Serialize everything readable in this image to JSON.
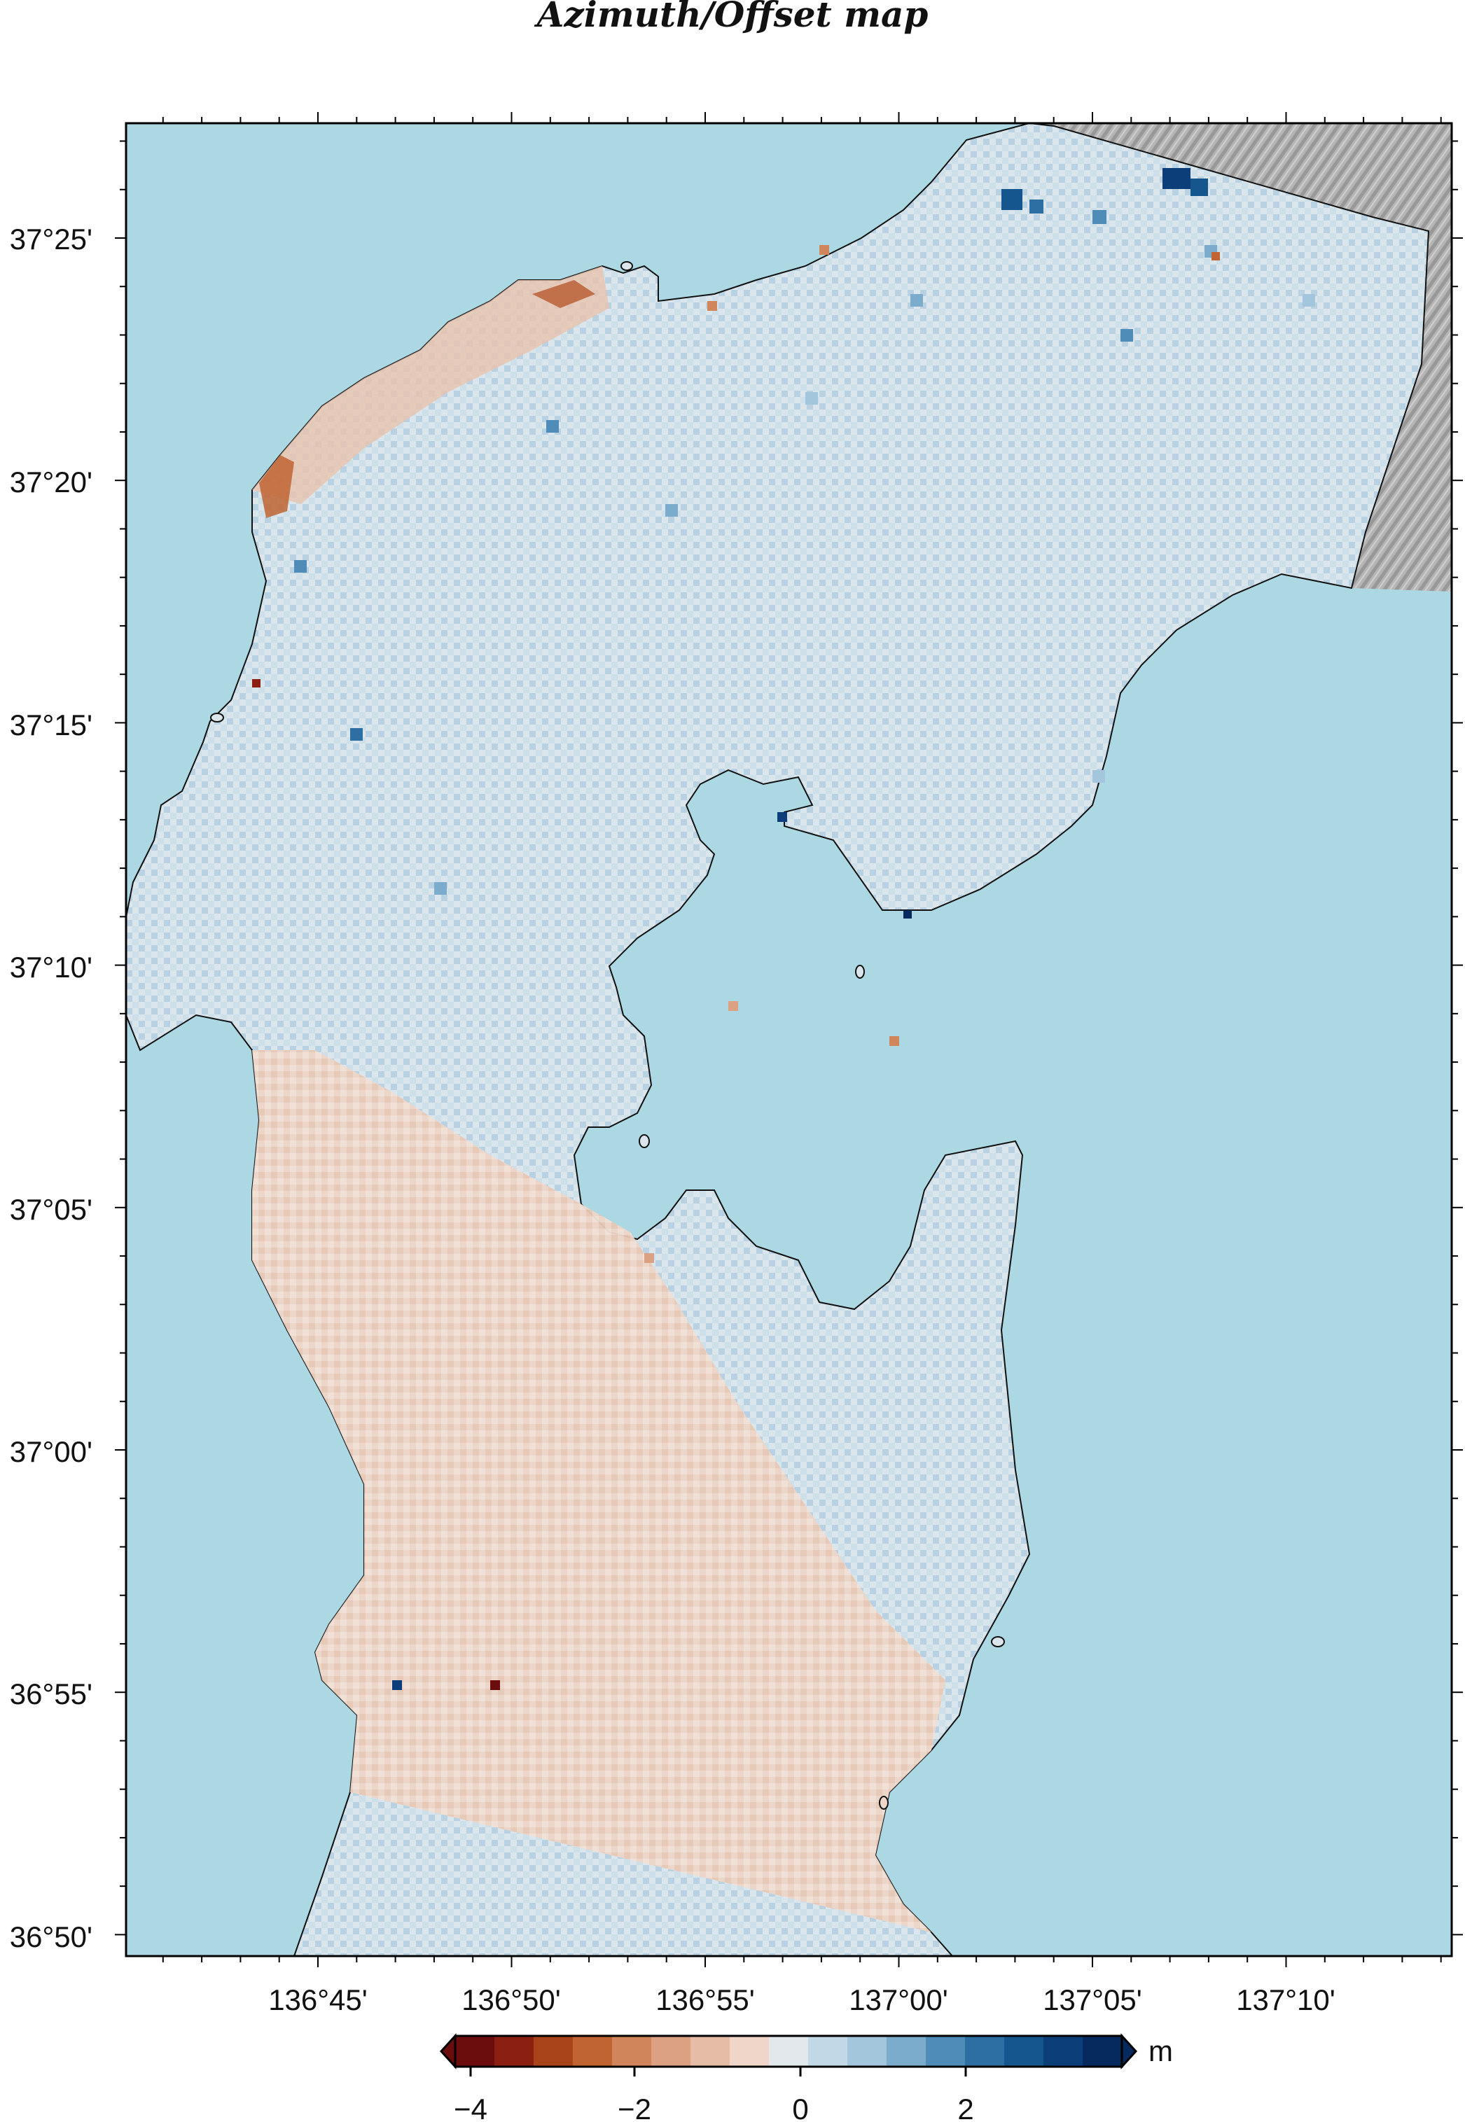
{
  "title": "Azimuth/Offset map",
  "colors": {
    "water": "#acd8e4",
    "land_base": "#dde7ec",
    "land_warm": "#efd7c9",
    "shade": "#a9a9a9",
    "frame": "#000000"
  },
  "axes": {
    "lon_labels": [
      "136°45'",
      "136°50'",
      "136°55'",
      "137°00'",
      "137°05'",
      "137°10'"
    ],
    "lat_labels": [
      "37°25'",
      "37°20'",
      "37°15'",
      "37°10'",
      "37°05'",
      "37°00'",
      "36°55'",
      "36°50'"
    ],
    "lon_range": [
      "136°40'",
      "137°14'"
    ],
    "lat_range": [
      "36°49.5'",
      "37°27.3'"
    ]
  },
  "colorbar": {
    "unit": "m",
    "tick_labels": [
      "−4",
      "−2",
      "0",
      "2"
    ],
    "range": [
      -4.2,
      4.2
    ],
    "steps": [
      "#6a0d0c",
      "#8a1f12",
      "#a8431a",
      "#c06432",
      "#d0865a",
      "#dca183",
      "#e6bca6",
      "#efd6c8",
      "#e3e8ec",
      "#c2d8e6",
      "#a3c6dd",
      "#7caccc",
      "#4f8cb8",
      "#2d6fa3",
      "#16568f",
      "#0c3f7a",
      "#06295e"
    ]
  }
}
